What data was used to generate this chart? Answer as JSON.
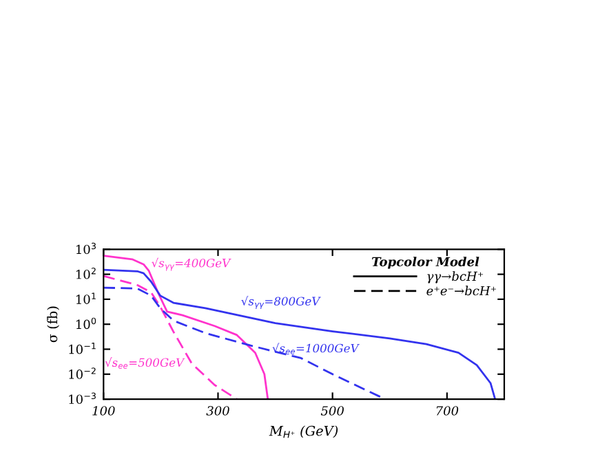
{
  "chart_data": {
    "type": "line",
    "xlabel": "M$_{H⁺}$ (GeV)",
    "ylabel": "σ (fb)",
    "legend_title": "Topcolor Model",
    "log": "y",
    "xlim": [
      100,
      800
    ],
    "xticks": [
      100,
      300,
      500,
      700
    ],
    "ylim": [
      0.001,
      1000
    ],
    "yticks": [
      {
        "value": 0.001,
        "label": "10$^{−3}$"
      },
      {
        "value": 0.01,
        "label": "10$^{−2}$"
      },
      {
        "value": 0.1,
        "label": "10$^{−1}$"
      },
      {
        "value": 1,
        "label": "10$^{0}$"
      },
      {
        "value": 10,
        "label": "10$^{1}$"
      },
      {
        "value": 100,
        "label": "10$^{2}$"
      },
      {
        "value": 1000,
        "label": "10$^{3}$"
      }
    ],
    "series": [
      {
        "color": "#ff33cc",
        "line_style": "solid",
        "x": [
          100,
          150,
          170,
          179,
          195,
          211,
          238,
          294,
          333,
          365,
          381,
          387
        ],
        "values": [
          550,
          400,
          250,
          140,
          19,
          3.2,
          2.3,
          0.85,
          0.37,
          0.072,
          0.01,
          0.001
        ]
      },
      {
        "color": "#3333ee",
        "line_style": "solid",
        "x": [
          100,
          160,
          170,
          183,
          199,
          222,
          278,
          400,
          500,
          600,
          664,
          720,
          752,
          776,
          784
        ],
        "values": [
          150,
          130,
          110,
          51,
          14,
          7.2,
          4.4,
          1.1,
          0.52,
          0.27,
          0.16,
          0.072,
          0.023,
          0.0044,
          0.001
        ]
      },
      {
        "color": "#ff33cc",
        "line_style": "dashed",
        "x": [
          100,
          159,
          183,
          199,
          222,
          254,
          294,
          333
        ],
        "values": [
          85,
          37,
          19,
          5.1,
          0.51,
          0.027,
          0.0037,
          0.001
        ]
      },
      {
        "color": "#3333ee",
        "line_style": "dashed",
        "x": [
          100,
          159,
          183,
          199,
          222,
          278,
          357,
          445,
          500,
          592
        ],
        "values": [
          29,
          27,
          14,
          4.4,
          1.4,
          0.44,
          0.14,
          0.044,
          0.01,
          0.001
        ]
      }
    ],
    "annotations": [
      "γγ→bcH⁺",
      "e⁺e⁻→bcH⁺",
      {
        "text": "√s$_{γγ}$=400GeV",
        "x": 170,
        "y": 250
      },
      {
        "text": "√s$_{γγ}$=800GeV",
        "x": 330,
        "y": 2.4
      },
      {
        "text": "√s$_{ee}$=1000GeV",
        "x": 470,
        "y": 0.035
      },
      {
        "text": "√s$_{ee}$=500GeV",
        "x": 254,
        "y": 0.027
      }
    ]
  }
}
